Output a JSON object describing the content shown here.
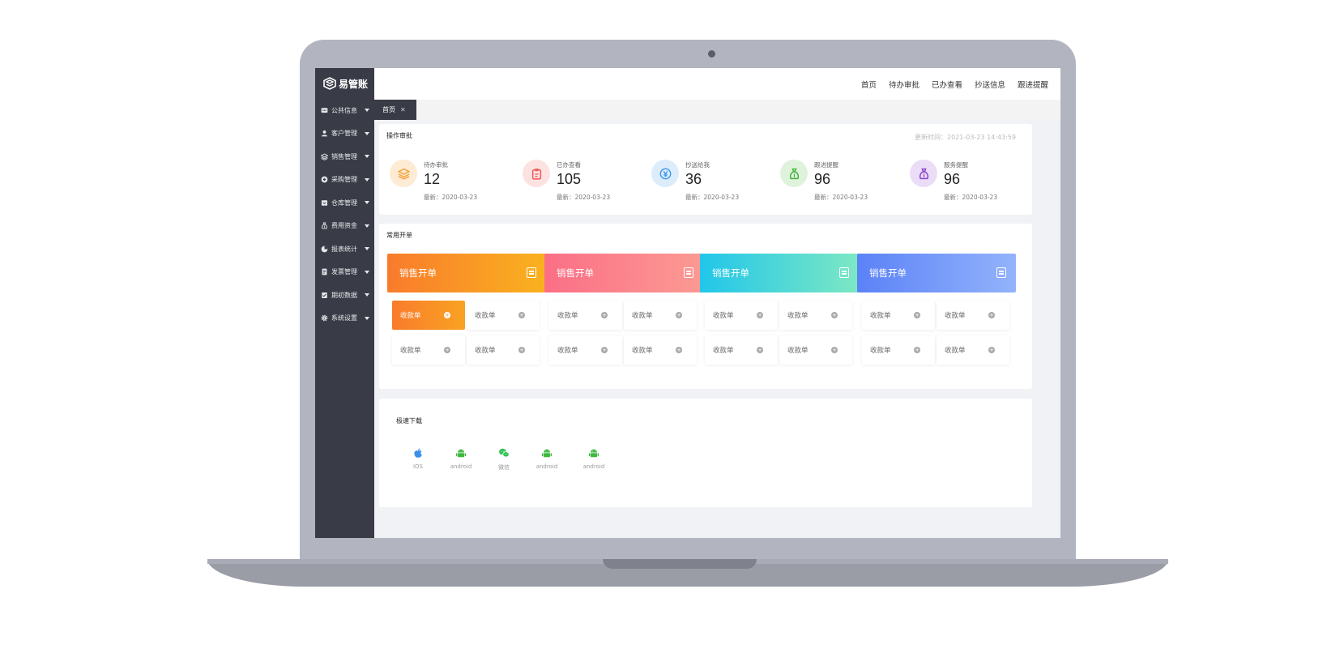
{
  "app": {
    "name": "易管账"
  },
  "sidebar": {
    "items": [
      {
        "label": "公共信息",
        "icon": "chat-icon"
      },
      {
        "label": "客户管理",
        "icon": "user-icon"
      },
      {
        "label": "销售管理",
        "icon": "layers-icon"
      },
      {
        "label": "采购管理",
        "icon": "cart-icon"
      },
      {
        "label": "仓库管理",
        "icon": "warehouse-icon"
      },
      {
        "label": "费用资金",
        "icon": "money-bag-icon"
      },
      {
        "label": "报表统计",
        "icon": "pie-chart-icon"
      },
      {
        "label": "发票管理",
        "icon": "invoice-icon"
      },
      {
        "label": "期初数据",
        "icon": "checklist-icon"
      },
      {
        "label": "系统设置",
        "icon": "gear-icon"
      }
    ]
  },
  "topnav": {
    "items": [
      "首页",
      "待办审批",
      "已办查看",
      "抄送信息",
      "跟进提醒"
    ]
  },
  "tabs": [
    {
      "label": "首页"
    }
  ],
  "approval": {
    "title": "操作审批",
    "update_time": "更新时间：2021-03-23 14:43:59",
    "stats": [
      {
        "label": "待办审批",
        "value": "12",
        "date": "最新：2020-03-23",
        "icon": "layers-icon",
        "color": "#f5a540",
        "bg": "#fdebd4"
      },
      {
        "label": "已办查看",
        "value": "105",
        "date": "最新：2020-03-23",
        "icon": "clipboard-icon",
        "color": "#ef5a5a",
        "bg": "#fde2e2"
      },
      {
        "label": "抄送给我",
        "value": "36",
        "date": "最新：2020-03-23",
        "icon": "yen-icon",
        "color": "#3b97e8",
        "bg": "#dcecfb"
      },
      {
        "label": "跟进提醒",
        "value": "96",
        "date": "最新：2020-03-23",
        "icon": "money-bag-icon",
        "color": "#43b33f",
        "bg": "#dff3dc"
      },
      {
        "label": "服务提醒",
        "value": "96",
        "date": "最新：2020-03-23",
        "icon": "money-bag-icon",
        "color": "#8a45c8",
        "bg": "#ebdcf7"
      }
    ]
  },
  "quick": {
    "title": "常用开单",
    "groups": [
      {
        "label": "销售开单",
        "gradient": [
          "#f97b2c",
          "#f9b21f"
        ],
        "chips": [
          "收款单",
          "收款单",
          "收款单",
          "收款单"
        ]
      },
      {
        "label": "销售开单",
        "gradient": [
          "#fb6f86",
          "#fb9a93"
        ],
        "chips": [
          "收款单",
          "收款单",
          "收款单",
          "收款单"
        ]
      },
      {
        "label": "销售开单",
        "gradient": [
          "#21c6ea",
          "#7de8c3"
        ],
        "chips": [
          "收款单",
          "收款单",
          "收款单",
          "收款单"
        ]
      },
      {
        "label": "销售开单",
        "gradient": [
          "#5b82f7",
          "#93b3fb"
        ],
        "chips": [
          "收款单",
          "收款单",
          "收款单",
          "收款单"
        ]
      }
    ]
  },
  "download": {
    "title": "极速下载",
    "items": [
      {
        "label": "IOS",
        "icon": "apple-icon",
        "color": "#3b8fe8"
      },
      {
        "label": "android",
        "icon": "android-icon",
        "color": "#3fb83f"
      },
      {
        "label": "微信",
        "icon": "wechat-icon",
        "color": "#2cc14f"
      },
      {
        "label": "android",
        "icon": "android-icon",
        "color": "#3fb83f"
      },
      {
        "label": "android",
        "icon": "android-icon",
        "color": "#3fb83f"
      }
    ]
  }
}
